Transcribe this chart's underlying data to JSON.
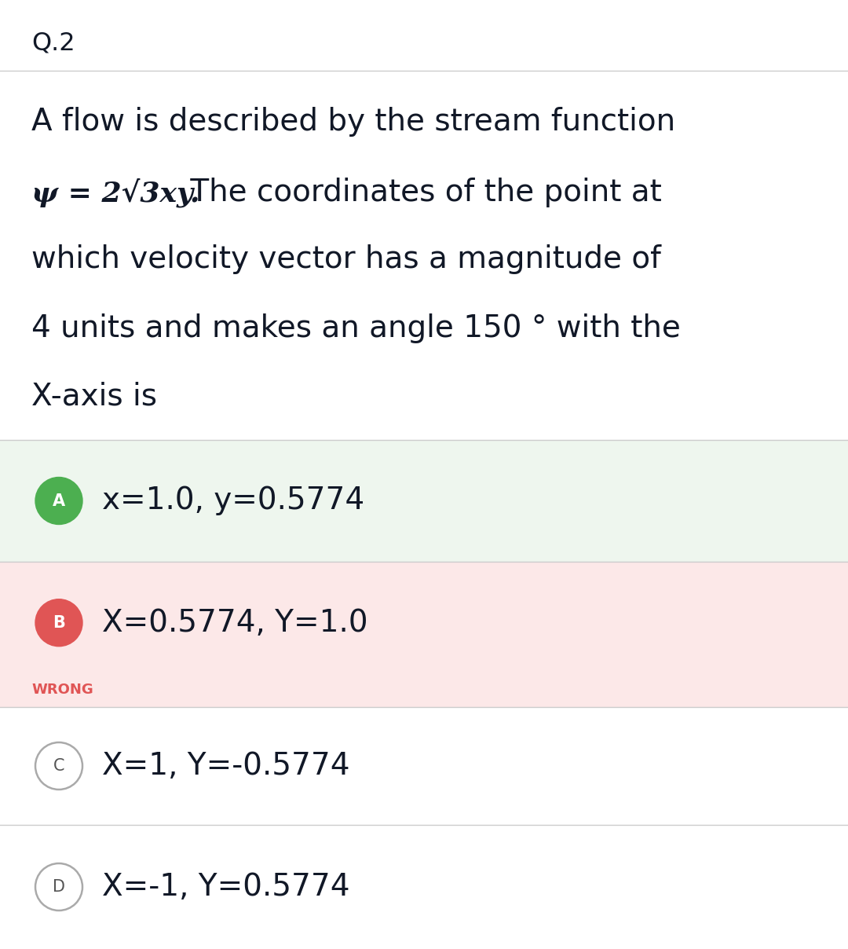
{
  "title": "Q.2",
  "question_line1": "A flow is described by the stream function",
  "question_line2_math": "ψ = 2√3xy.",
  "question_line2_text": " The coordinates of the point at",
  "question_line3": "which velocity vector has a magnitude of",
  "question_line4": "4 units and makes an angle 150 ° with the",
  "question_line5": "X-axis is",
  "options": [
    {
      "label": "A",
      "text": "x=1.0, y=0.5774",
      "circle_color": "#4CAF50",
      "bg_color": "#eef6ee",
      "circle_fill": true,
      "wrong": false
    },
    {
      "label": "B",
      "text": "X=0.5774, Y=1.0",
      "circle_color": "#e05555",
      "bg_color": "#fce8e8",
      "circle_fill": true,
      "wrong": true
    },
    {
      "label": "C",
      "text": "X=1, Y=-0.5774",
      "circle_color": "#aaaaaa",
      "bg_color": "#ffffff",
      "circle_fill": false,
      "wrong": false
    },
    {
      "label": "D",
      "text": "X=-1, Y=0.5774",
      "circle_color": "#aaaaaa",
      "bg_color": "#ffffff",
      "circle_fill": false,
      "wrong": false
    }
  ],
  "wrong_label": "WRONG",
  "wrong_color": "#e05555",
  "bg_color": "#ffffff",
  "separator_color": "#cccccc",
  "title_fontsize": 23,
  "question_fontsize": 28,
  "option_fontsize": 28,
  "circle_label_fontsize": 15,
  "wrong_fontsize": 13
}
